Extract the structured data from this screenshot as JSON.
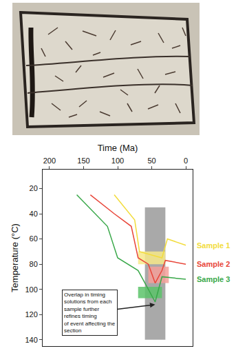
{
  "chart_data": {
    "type": "line",
    "x_label": "Time (Ma)",
    "y_label": "Temperature (°C)",
    "xlim": [
      210,
      -10
    ],
    "xticks": [
      200,
      150,
      100,
      50,
      0
    ],
    "ylim": [
      5,
      145
    ],
    "yticks": [
      20,
      40,
      60,
      80,
      100,
      120,
      140
    ],
    "grid": false,
    "legend": "right",
    "series": [
      {
        "name": "Sample 1",
        "color": "#f2dc3c",
        "x": [
          105,
          75,
          68,
          55,
          35,
          27,
          0
        ],
        "values": [
          25,
          45,
          70,
          72,
          75,
          60,
          65
        ]
      },
      {
        "name": "Sample 2",
        "color": "#e8463a",
        "x": [
          140,
          105,
          80,
          70,
          55,
          45,
          35,
          30,
          0
        ],
        "values": [
          25,
          40,
          50,
          75,
          80,
          95,
          85,
          77,
          80
        ]
      },
      {
        "name": "Sample 3",
        "color": "#3aa84a",
        "x": [
          160,
          115,
          100,
          70,
          55,
          45,
          35,
          0
        ],
        "values": [
          25,
          50,
          75,
          85,
          100,
          110,
          90,
          92
        ]
      }
    ],
    "boxes": [
      {
        "x": [
          60,
          30
        ],
        "y": [
          35,
          140
        ],
        "color": "#9a9a9a"
      },
      {
        "x": [
          70,
          30
        ],
        "y": [
          70,
          80
        ],
        "color": "#f7e98a"
      },
      {
        "x": [
          55,
          25
        ],
        "y": [
          82,
          95
        ],
        "color": "#f4a09a"
      },
      {
        "x": [
          70,
          35
        ],
        "y": [
          98,
          107
        ],
        "color": "#5cc36a"
      }
    ],
    "annotation": {
      "text": "Overlap in timing\nsolutions from each\nsample further\nrefines timing\nof event affecting the\nsection",
      "x": 45,
      "y": 112
    }
  }
}
